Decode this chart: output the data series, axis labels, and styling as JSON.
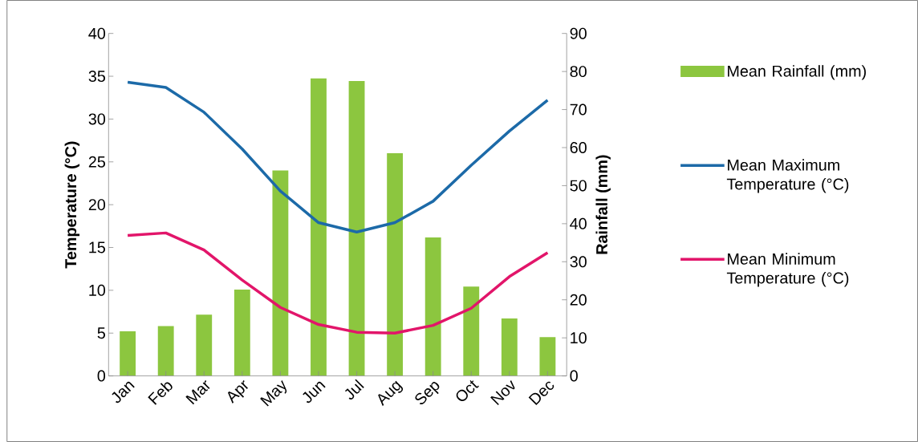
{
  "chart_data": {
    "type": "bar",
    "categories": [
      "Jan",
      "Feb",
      "Mar",
      "Apr",
      "May",
      "Jun",
      "Jul",
      "Aug",
      "Sep",
      "Oct",
      "Nov",
      "Dec"
    ],
    "series": [
      {
        "name": "Mean Rainfall (mm)",
        "axis": "y2",
        "color": "#8cc63f",
        "values": [
          11.7,
          13.1,
          16.1,
          22.7,
          54,
          78.2,
          77.5,
          58.5,
          36.4,
          23.5,
          15.1,
          10.2
        ]
      },
      {
        "name": "Mean Maximum Temperature (°C)",
        "type": "line",
        "color": "#1c6aa8",
        "values": [
          34.3,
          33.7,
          30.8,
          26.5,
          21.6,
          17.9,
          16.8,
          17.9,
          20.4,
          24.6,
          28.6,
          32.2
        ]
      },
      {
        "name": "Mean Minimum Temperature (°C)",
        "type": "line",
        "color": "#e2156a",
        "values": [
          16.4,
          16.7,
          14.7,
          11.2,
          8.0,
          6.0,
          5.1,
          5.0,
          5.9,
          7.9,
          11.6,
          14.4
        ]
      }
    ],
    "ylabel": "Temperature (°C)",
    "y2label": "Rainfall (mm)",
    "ylim": [
      0,
      40
    ],
    "yticks": [
      0,
      5,
      10,
      15,
      20,
      25,
      30,
      35,
      40
    ],
    "y2lim": [
      0,
      90
    ],
    "y2ticks": [
      0,
      10,
      20,
      30,
      40,
      50,
      60,
      70,
      80,
      90
    ],
    "legend": "right"
  }
}
